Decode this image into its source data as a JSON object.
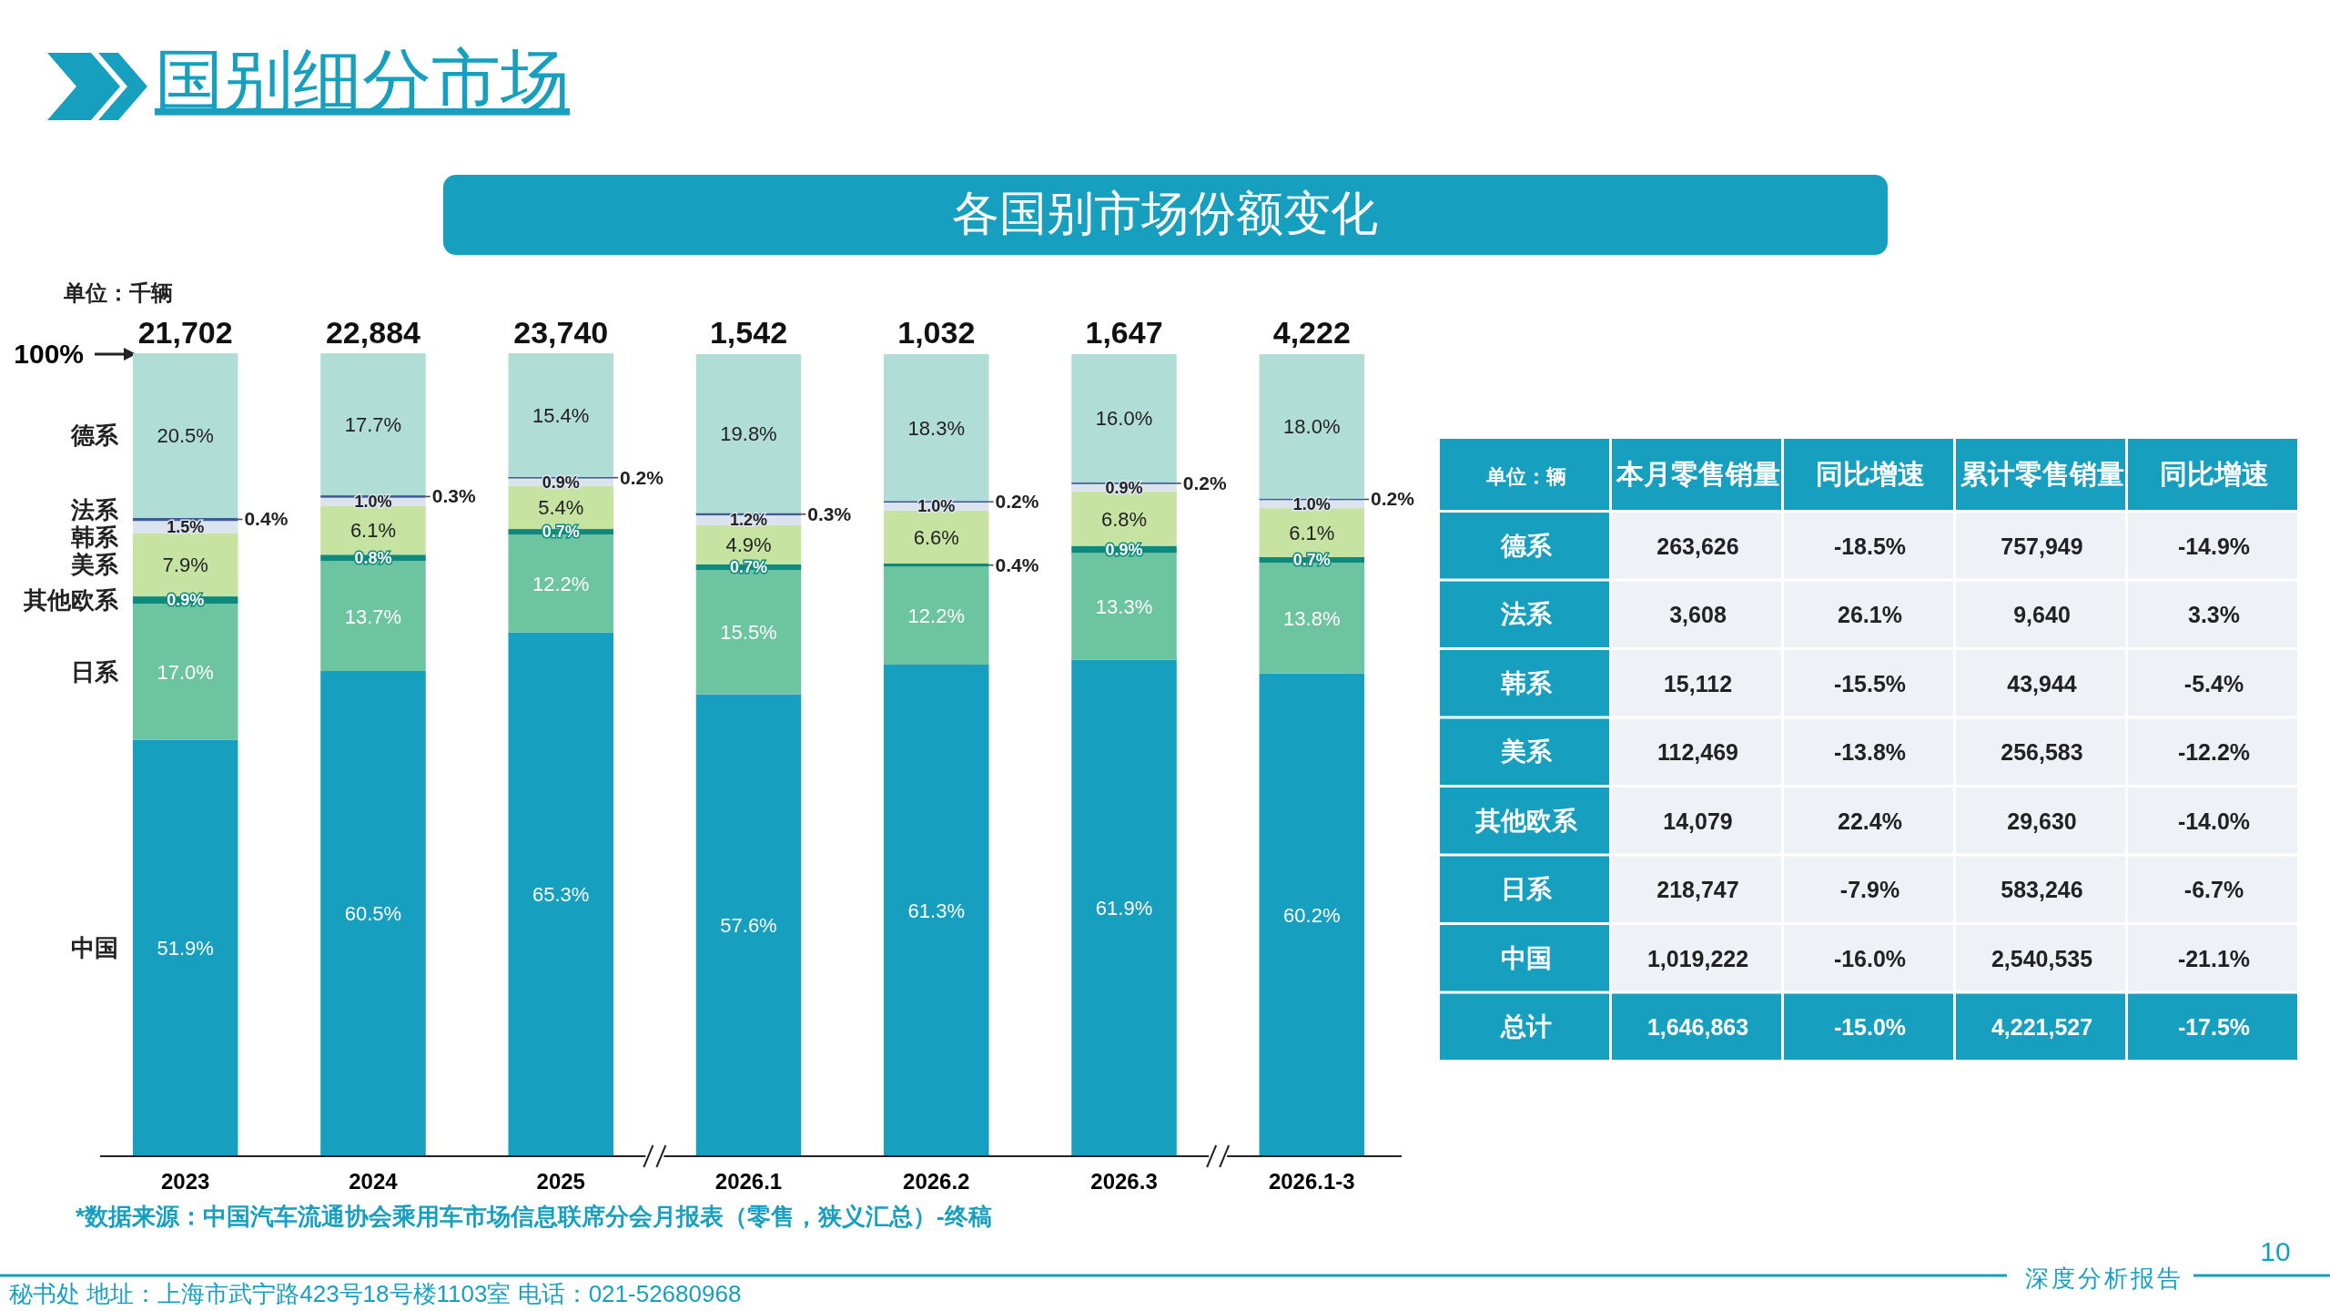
{
  "chart_data": [
    {
      "type": "bar",
      "title": "国别细分市场",
      "subtitle": "各国别市场份额变化",
      "stacked": true,
      "legend": "left",
      "categories": [
        "2023",
        "2024",
        "2025",
        "2026.1",
        "2026.2",
        "2026.3",
        "2026.1-3"
      ],
      "ylim": [
        0,
        100
      ],
      "series": [
        {
          "name": "中国",
          "color": "#179fc0",
          "values": [
            51.9,
            60.5,
            65.3,
            57.6,
            61.3,
            61.9,
            60.2
          ],
          "value_labels": [
            "51.9%",
            "60.5%",
            "65.3%",
            "57.6%",
            "61.3%",
            "61.9%",
            "60.2%"
          ]
        },
        {
          "name": "日系",
          "color": "#6cc4a1",
          "values": [
            17.0,
            13.7,
            12.2,
            15.5,
            12.2,
            13.3,
            13.8
          ],
          "value_labels": [
            "17.0%",
            "13.7%",
            "12.2%",
            "15.5%",
            "12.2%",
            "13.3%",
            "13.8%"
          ]
        },
        {
          "name": "其他欧系",
          "color": "#0e8a7c",
          "values": [
            0.9,
            0.8,
            0.7,
            0.7,
            0.4,
            0.9,
            0.7
          ],
          "value_labels": [
            "0.9%",
            "0.8%",
            "0.7%",
            "0.7%",
            "0.4%",
            "0.9%",
            "0.7%"
          ]
        },
        {
          "name": "美系",
          "color": "#c6e3a1",
          "values": [
            7.9,
            6.1,
            5.4,
            4.9,
            6.6,
            6.8,
            6.1
          ],
          "value_labels": [
            "7.9%",
            "6.1%",
            "5.4%",
            "4.9%",
            "6.6%",
            "6.8%",
            "6.1%"
          ]
        },
        {
          "name": "韩系",
          "color": "#dbe3ee",
          "values": [
            1.5,
            1.0,
            0.9,
            1.2,
            1.0,
            0.9,
            1.0
          ],
          "value_labels": [
            "1.5%",
            "1.0%",
            "0.9%",
            "1.2%",
            "1.0%",
            "0.9%",
            "1.0%"
          ]
        },
        {
          "name": "法系",
          "color": "#3b5a98",
          "values": [
            0.4,
            0.3,
            0.2,
            0.3,
            0.2,
            0.2,
            0.2
          ],
          "value_labels": [
            "0.4%",
            "0.3%",
            "0.2%",
            "0.3%",
            "0.2%",
            "0.2%",
            "0.2%"
          ]
        },
        {
          "name": "德系",
          "color": "#b1ddd7",
          "values": [
            20.5,
            17.7,
            15.4,
            19.8,
            18.3,
            16.0,
            18.0
          ],
          "value_labels": [
            "20.5%",
            "17.7%",
            "15.4%",
            "19.8%",
            "18.3%",
            "16.0%",
            "18.0%"
          ]
        }
      ],
      "annotations": [
        "单位：千辆",
        "*数据来源：中国汽车流通协会乘用车市场信息联席分会月报表（零售，狭义汇总）-终稿",
        "秘书处  地址：上海市武宁路423号18号楼1103室  电话：021-52680968",
        "深度分析报告",
        "10",
        "100%",
        {
          "text": "21,702",
          "x": "2023",
          "y": 100
        },
        {
          "text": "22,884",
          "x": "2024",
          "y": 100
        },
        {
          "text": "23,740",
          "x": "2025",
          "y": 100
        },
        {
          "text": "1,542",
          "x": "2026.1",
          "y": 100
        },
        {
          "text": "1,032",
          "x": "2026.2",
          "y": 100
        },
        {
          "text": "1,647",
          "x": "2026.3",
          "y": 100
        },
        {
          "text": "4,222",
          "x": "2026.1-3",
          "y": 100
        }
      ]
    },
    {
      "type": "other",
      "categories": [
        "单位：辆",
        "本月零售销量",
        "同比增速",
        "累计零售销量",
        "同比增速"
      ],
      "y_categories": [
        "德系",
        "法系",
        "韩系",
        "美系",
        "其他欧系",
        "日系",
        "中国",
        "总计"
      ],
      "cell_labels": [
        [
          "263,626",
          "-18.5%",
          "757,949",
          "-14.9%"
        ],
        [
          "3,608",
          "26.1%",
          "9,640",
          "3.3%"
        ],
        [
          "15,112",
          "-15.5%",
          "43,944",
          "-5.4%"
        ],
        [
          "112,469",
          "-13.8%",
          "256,583",
          "-12.2%"
        ],
        [
          "14,079",
          "22.4%",
          "29,630",
          "-14.0%"
        ],
        [
          "218,747",
          "-7.9%",
          "583,246",
          "-6.7%"
        ],
        [
          "1,019,222",
          "-16.0%",
          "2,540,535",
          "-21.1%"
        ],
        [
          "1,646,863",
          "-15.0%",
          "4,221,527",
          "-17.5%"
        ]
      ]
    }
  ]
}
